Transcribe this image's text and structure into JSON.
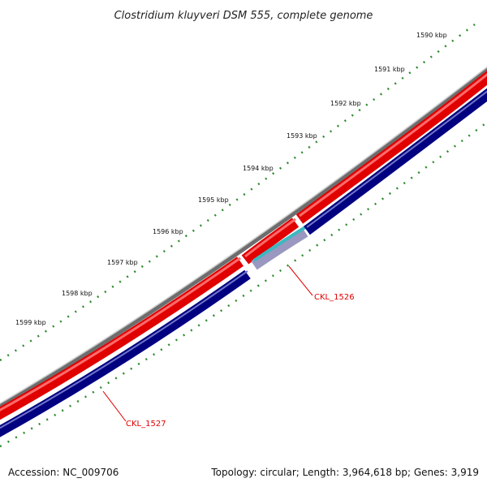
{
  "title": "Clostridium kluyveri DSM 555, complete genome",
  "ruler": {
    "labels": [
      "1590 kbp",
      "1591 kbp",
      "1592 kbp",
      "1593 kbp",
      "1594 kbp",
      "1595 kbp",
      "1596 kbp",
      "1597 kbp",
      "1598 kbp",
      "1599 kbp"
    ],
    "tick_color": "#2e8b2e"
  },
  "tracks": {
    "backbone_color": "#8c8c8c",
    "forward_strand_color": "#ff0000",
    "reverse_strand_color": "#000080",
    "highlight_color": "#3cb8c0"
  },
  "genes": [
    {
      "name": "CKL_1526",
      "label_color": "#e00000"
    },
    {
      "name": "CKL_1527",
      "label_color": "#e00000"
    }
  ],
  "footer": {
    "accession": "Accession: NC_009706",
    "summary": "Topology: circular; Length: 3,964,618 bp; Genes: 3,919"
  }
}
